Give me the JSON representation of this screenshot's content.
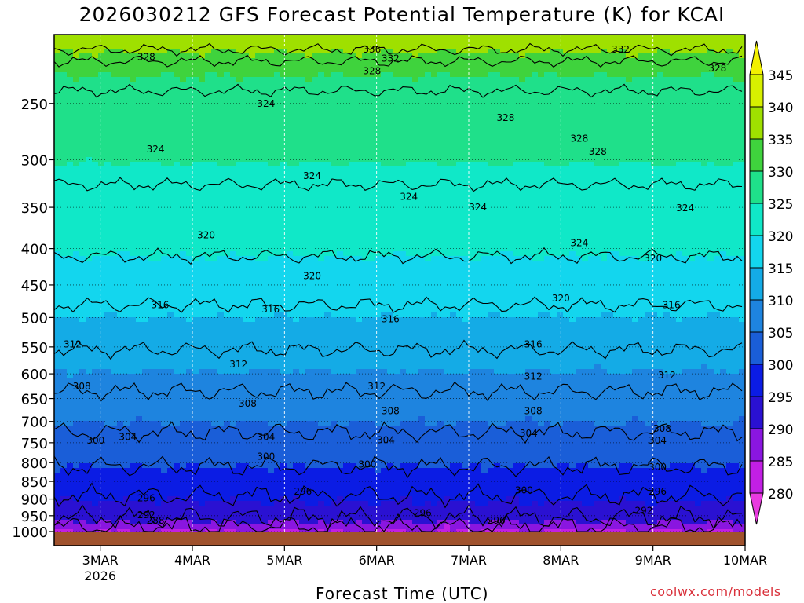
{
  "title": "2026030212 GFS Forecast Potential Temperature (K) for KCAI",
  "credit": "coolwx.com/models",
  "chart_data": {
    "type": "heatmap",
    "title": "2026030212 GFS Forecast Potential Temperature (K) for KCAI",
    "xlabel": "Forecast Time (UTC)",
    "ylabel": "",
    "x_ticks": [
      {
        "label": "3MAR",
        "sub": "2026",
        "day": 3
      },
      {
        "label": "4MAR",
        "day": 4
      },
      {
        "label": "5MAR",
        "day": 5
      },
      {
        "label": "6MAR",
        "day": 6
      },
      {
        "label": "7MAR",
        "day": 7
      },
      {
        "label": "8MAR",
        "day": 8
      },
      {
        "label": "9MAR",
        "day": 9
      },
      {
        "label": "10MAR",
        "day": 10
      }
    ],
    "x_range": [
      2.5,
      10
    ],
    "y_ticks": [
      250,
      300,
      350,
      400,
      450,
      500,
      550,
      600,
      650,
      700,
      750,
      800,
      850,
      900,
      950,
      1000
    ],
    "y_range_hPa": [
      200,
      1000
    ],
    "y_scale": "log-pressure",
    "colorbar": {
      "labels": [
        345,
        340,
        335,
        330,
        325,
        320,
        315,
        310,
        305,
        300,
        295,
        290,
        285,
        280
      ],
      "bins": [
        {
          "low": 340,
          "color": "#d7f000"
        },
        {
          "low": 335,
          "color": "#9fe000"
        },
        {
          "low": 330,
          "color": "#3fd33d"
        },
        {
          "low": 325,
          "color": "#1fe08a"
        },
        {
          "low": 320,
          "color": "#10e8c8"
        },
        {
          "low": 315,
          "color": "#13d6ee"
        },
        {
          "low": 310,
          "color": "#14abe6"
        },
        {
          "low": 305,
          "color": "#1e84df"
        },
        {
          "low": 300,
          "color": "#1a5ed8"
        },
        {
          "low": 295,
          "color": "#0b1ce4"
        },
        {
          "low": 290,
          "color": "#2a11d2"
        },
        {
          "low": 285,
          "color": "#8a16e0"
        },
        {
          "low": 280,
          "color": "#c21fe4"
        }
      ],
      "top_triangle": "#f3f000",
      "bottom_triangle": "#e93ae0"
    },
    "contour_interval": 4,
    "contour_levels": [
      {
        "theta": 336,
        "mean_hPa": 210
      },
      {
        "theta": 332,
        "mean_hPa": 218
      },
      {
        "theta": 328,
        "mean_hPa": 240
      },
      {
        "theta": 324,
        "mean_hPa": 325
      },
      {
        "theta": 320,
        "mean_hPa": 410
      },
      {
        "theta": 316,
        "mean_hPa": 480
      },
      {
        "theta": 312,
        "mean_hPa": 555
      },
      {
        "theta": 308,
        "mean_hPa": 635
      },
      {
        "theta": 304,
        "mean_hPa": 725
      },
      {
        "theta": 300,
        "mean_hPa": 810
      },
      {
        "theta": 296,
        "mean_hPa": 890
      },
      {
        "theta": 292,
        "mean_hPa": 955
      },
      {
        "theta": 288,
        "mean_hPa": 985
      }
    ],
    "contour_labels": [
      {
        "text": "336",
        "day": 5.95,
        "hPa": 210
      },
      {
        "text": "332",
        "day": 6.15,
        "hPa": 216
      },
      {
        "text": "332",
        "day": 8.65,
        "hPa": 210
      },
      {
        "text": "328",
        "day": 3.5,
        "hPa": 215
      },
      {
        "text": "328",
        "day": 5.95,
        "hPa": 225
      },
      {
        "text": "328",
        "day": 9.7,
        "hPa": 223
      },
      {
        "text": "328",
        "day": 7.4,
        "hPa": 262
      },
      {
        "text": "328",
        "day": 8.2,
        "hPa": 280
      },
      {
        "text": "328",
        "day": 8.4,
        "hPa": 292
      },
      {
        "text": "324",
        "day": 4.8,
        "hPa": 250
      },
      {
        "text": "324",
        "day": 3.6,
        "hPa": 290
      },
      {
        "text": "324",
        "day": 5.3,
        "hPa": 316
      },
      {
        "text": "324",
        "day": 6.35,
        "hPa": 338
      },
      {
        "text": "324",
        "day": 7.1,
        "hPa": 350
      },
      {
        "text": "324",
        "day": 9.35,
        "hPa": 351
      },
      {
        "text": "324",
        "day": 8.2,
        "hPa": 393
      },
      {
        "text": "320",
        "day": 4.15,
        "hPa": 383
      },
      {
        "text": "320",
        "day": 5.3,
        "hPa": 437
      },
      {
        "text": "320",
        "day": 8.0,
        "hPa": 470
      },
      {
        "text": "320",
        "day": 9.0,
        "hPa": 413
      },
      {
        "text": "316",
        "day": 3.65,
        "hPa": 480
      },
      {
        "text": "316",
        "day": 4.85,
        "hPa": 487
      },
      {
        "text": "316",
        "day": 6.15,
        "hPa": 503
      },
      {
        "text": "316",
        "day": 7.7,
        "hPa": 545
      },
      {
        "text": "316",
        "day": 9.2,
        "hPa": 480
      },
      {
        "text": "312",
        "day": 2.7,
        "hPa": 545
      },
      {
        "text": "312",
        "day": 4.5,
        "hPa": 582
      },
      {
        "text": "312",
        "day": 6.0,
        "hPa": 625
      },
      {
        "text": "312",
        "day": 7.7,
        "hPa": 605
      },
      {
        "text": "312",
        "day": 9.15,
        "hPa": 603
      },
      {
        "text": "308",
        "day": 2.8,
        "hPa": 625
      },
      {
        "text": "308",
        "day": 4.6,
        "hPa": 661
      },
      {
        "text": "308",
        "day": 6.15,
        "hPa": 677
      },
      {
        "text": "308",
        "day": 7.7,
        "hPa": 677
      },
      {
        "text": "308",
        "day": 9.1,
        "hPa": 717
      },
      {
        "text": "304",
        "day": 3.3,
        "hPa": 736
      },
      {
        "text": "304",
        "day": 4.8,
        "hPa": 736
      },
      {
        "text": "304",
        "day": 6.1,
        "hPa": 744
      },
      {
        "text": "304",
        "day": 7.65,
        "hPa": 728
      },
      {
        "text": "304",
        "day": 9.05,
        "hPa": 745
      },
      {
        "text": "300",
        "day": 2.95,
        "hPa": 745
      },
      {
        "text": "300",
        "day": 4.8,
        "hPa": 784
      },
      {
        "text": "300",
        "day": 5.9,
        "hPa": 805
      },
      {
        "text": "300",
        "day": 7.6,
        "hPa": 875
      },
      {
        "text": "300",
        "day": 9.05,
        "hPa": 812
      },
      {
        "text": "296",
        "day": 3.5,
        "hPa": 898
      },
      {
        "text": "296",
        "day": 5.2,
        "hPa": 878
      },
      {
        "text": "296",
        "day": 6.5,
        "hPa": 942
      },
      {
        "text": "296",
        "day": 7.3,
        "hPa": 965
      },
      {
        "text": "296",
        "day": 9.05,
        "hPa": 878
      },
      {
        "text": "292",
        "day": 3.5,
        "hPa": 948
      },
      {
        "text": "292",
        "day": 8.9,
        "hPa": 935
      },
      {
        "text": "288",
        "day": 3.6,
        "hPa": 965
      }
    ]
  }
}
